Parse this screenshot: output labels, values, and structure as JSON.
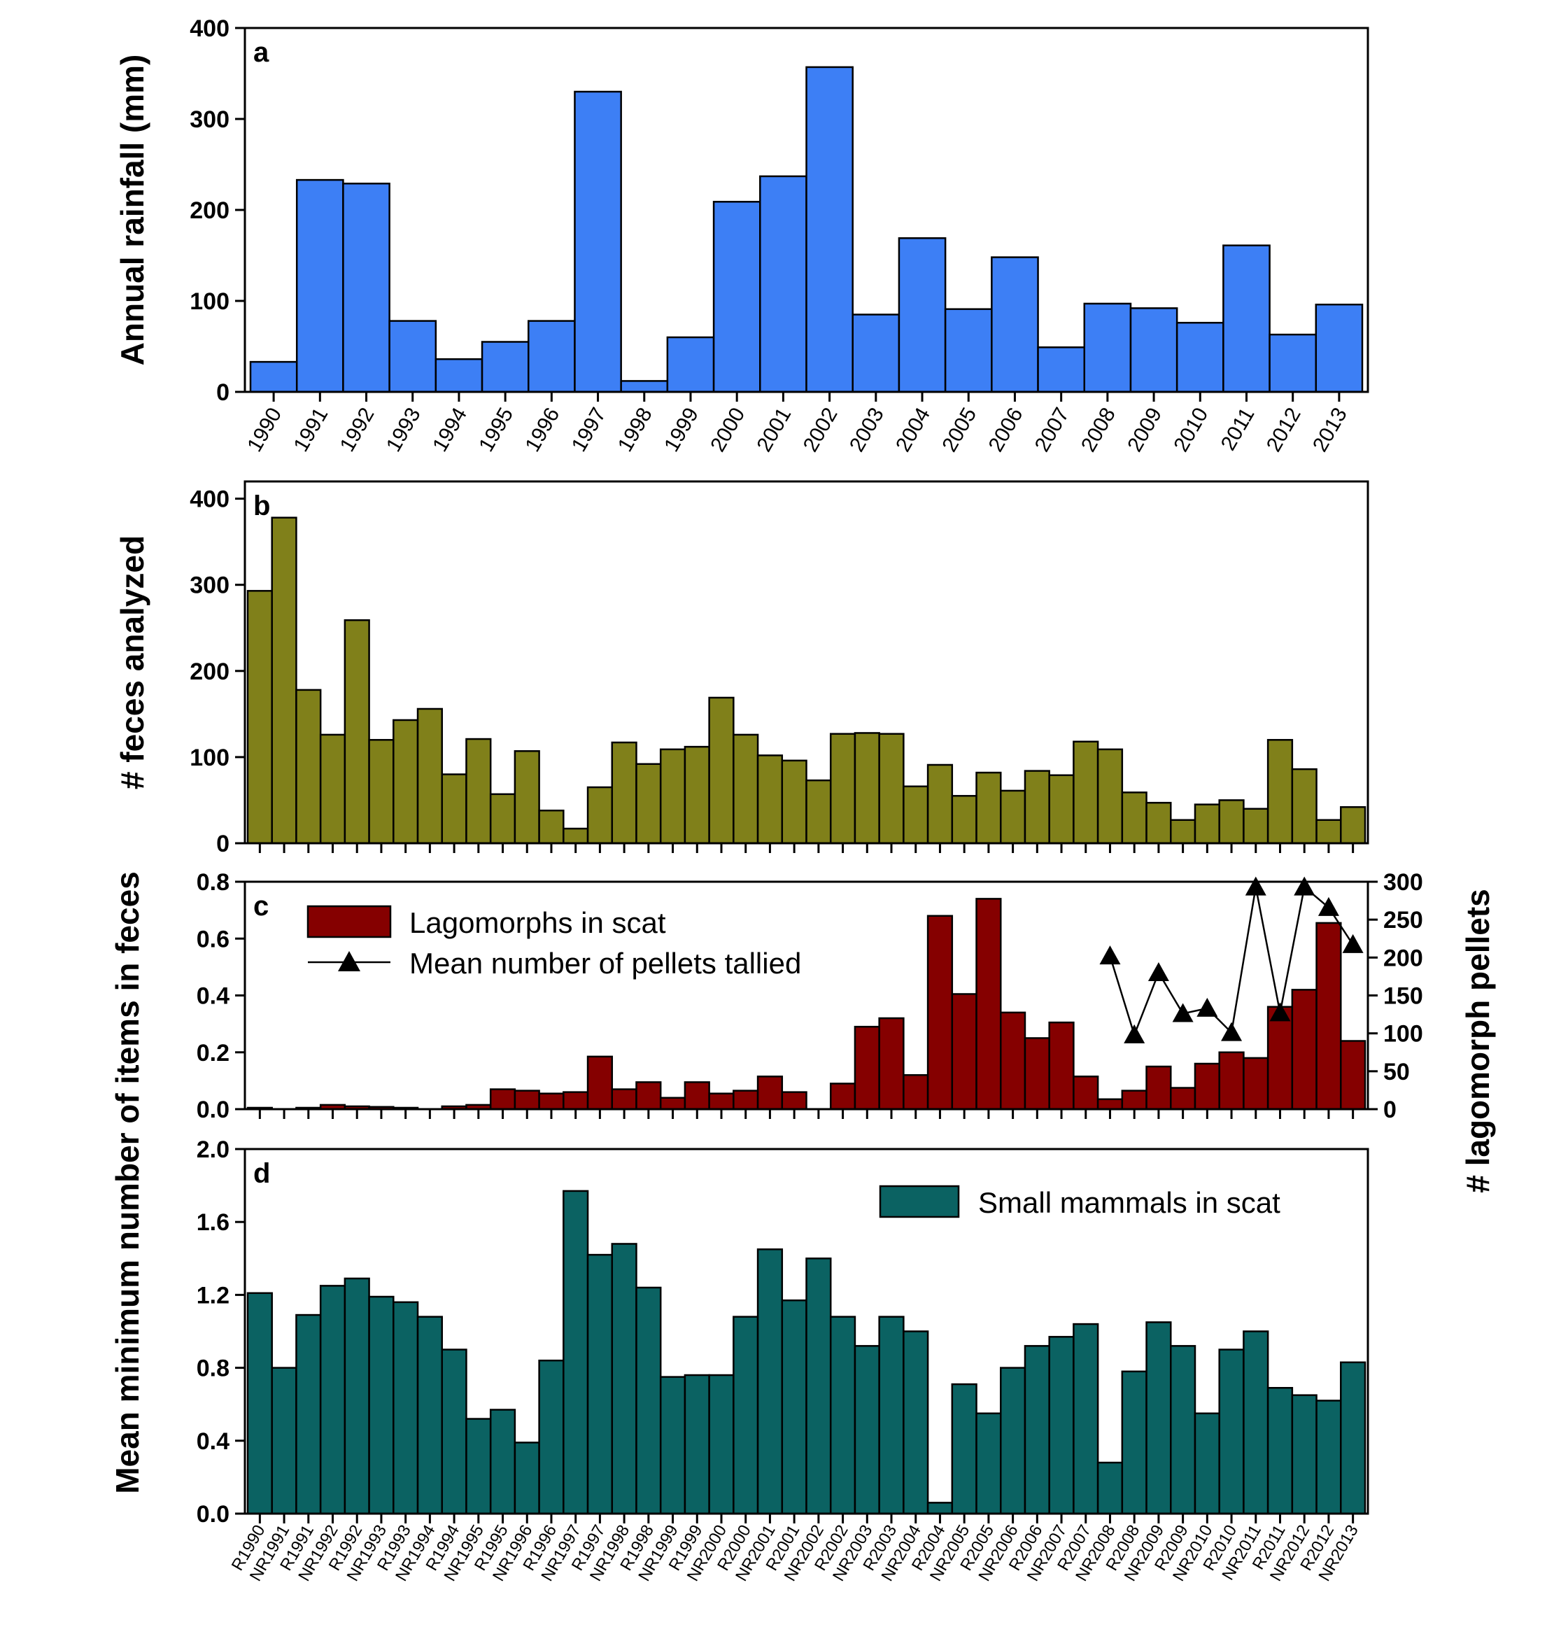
{
  "chart_data": [
    {
      "panel": "a",
      "type": "bar",
      "ylabel": "Annual rainfall (mm)",
      "ylim": [
        0,
        400
      ],
      "yticks": [
        0,
        100,
        200,
        300,
        400
      ],
      "categories": [
        "1990",
        "1991",
        "1992",
        "1993",
        "1994",
        "1995",
        "1996",
        "1997",
        "1998",
        "1999",
        "2000",
        "2001",
        "2002",
        "2003",
        "2004",
        "2005",
        "2006",
        "2007",
        "2008",
        "2009",
        "2010",
        "2011",
        "2012",
        "2013"
      ],
      "values": [
        33,
        233,
        229,
        78,
        36,
        55,
        78,
        330,
        12,
        60,
        209,
        237,
        357,
        85,
        169,
        91,
        148,
        49,
        97,
        92,
        76,
        161,
        63,
        96
      ],
      "color": "#3d7ff5"
    },
    {
      "panel": "b",
      "type": "bar",
      "ylabel": "# feces analyzed",
      "ylim": [
        0,
        420
      ],
      "yticks": [
        0,
        100,
        200,
        300,
        400
      ],
      "values": [
        293,
        378,
        178,
        126,
        259,
        120,
        143,
        156,
        80,
        121,
        57,
        107,
        38,
        17,
        65,
        117,
        92,
        109,
        112,
        169,
        126,
        102,
        96,
        73,
        127,
        128,
        127,
        66,
        91,
        55,
        82,
        61,
        84,
        79,
        118,
        109,
        59,
        47,
        27,
        45,
        50,
        40,
        120,
        86,
        27,
        42
      ],
      "color": "#80801a"
    },
    {
      "panel": "c",
      "type": "bar",
      "ylabel": "Mean minimum number of items in feces",
      "y2label": "# lagomorph pellets",
      "ylim": [
        0,
        0.8
      ],
      "yticks": [
        "0.0",
        "0.2",
        "0.4",
        "0.6",
        "0.8"
      ],
      "y2lim": [
        0,
        300
      ],
      "y2ticks": [
        0,
        50,
        100,
        150,
        200,
        250,
        300
      ],
      "series": [
        {
          "name": "Lagomorphs in scat",
          "type": "bar",
          "color": "#850000",
          "values": [
            0.005,
            0,
            0.005,
            0.015,
            0.01,
            0.008,
            0.005,
            0,
            0.01,
            0.015,
            0.07,
            0.065,
            0.055,
            0.06,
            0.185,
            0.07,
            0.095,
            0.04,
            0.095,
            0.055,
            0.065,
            0.115,
            0.06,
            0,
            0.09,
            0.29,
            0.32,
            0.12,
            0.68,
            0.405,
            0.74,
            0.34,
            0.25,
            0.305,
            0.115,
            0.035,
            0.065,
            0.15,
            0.075,
            0.16,
            0.2,
            0.18,
            0.36,
            0.42,
            0.655,
            0.24
          ]
        },
        {
          "name": "Mean number of pellets tallied",
          "type": "line",
          "axis": "right",
          "marker": "triangle",
          "indices": [
            35,
            37,
            39,
            41,
            43,
            45
          ],
          "x_index": [
            35,
            36,
            37,
            38,
            39,
            40,
            41,
            42,
            43,
            44,
            45
          ],
          "values": [
            202,
            98,
            180,
            126,
            133,
            101,
            293,
            127,
            293,
            266,
            217
          ]
        }
      ]
    },
    {
      "panel": "d",
      "type": "bar",
      "ylabel": "",
      "ylim": [
        0,
        2.0
      ],
      "yticks": [
        "0.0",
        "0.4",
        "0.8",
        "1.2",
        "1.6",
        "2.0"
      ],
      "categories": [
        "R1990",
        "NR1991",
        "R1991",
        "NR1992",
        "R1992",
        "NR1993",
        "R1993",
        "NR1994",
        "R1994",
        "NR1995",
        "R1995",
        "NR1996",
        "R1996",
        "NR1997",
        "R1997",
        "NR1998",
        "R1998",
        "NR1999",
        "R1999",
        "NR2000",
        "R2000",
        "NR2001",
        "R2001",
        "NR2002",
        "R2002",
        "NR2003",
        "R2003",
        "NR2004",
        "R2004",
        "NR2005",
        "R2005",
        "NR2006",
        "R2006",
        "NR2007",
        "R2007",
        "NR2008",
        "R2008",
        "NR2009",
        "R2009",
        "NR2010",
        "R2010",
        "NR2011",
        "R2011",
        "NR2012",
        "R2012",
        "NR2013"
      ],
      "series": [
        {
          "name": "Small mammals in scat",
          "color": "#0b6262",
          "values": [
            1.21,
            0.8,
            1.09,
            1.25,
            1.29,
            1.19,
            1.16,
            1.08,
            0.9,
            0.52,
            0.57,
            0.39,
            0.84,
            1.77,
            1.42,
            1.48,
            1.24,
            0.75,
            0.76,
            0.76,
            1.08,
            1.45,
            1.17,
            1.4,
            1.08,
            0.92,
            1.08,
            1.0,
            0.06,
            0.71,
            0.55,
            0.8,
            0.92,
            0.97,
            1.04,
            0.28,
            0.78,
            1.05,
            0.92,
            0.55,
            0.9,
            1.0,
            0.69,
            0.65,
            0.62,
            0.83
          ]
        }
      ]
    }
  ]
}
